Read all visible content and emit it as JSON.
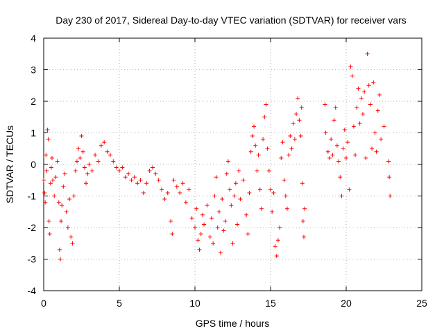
{
  "chart_data": {
    "type": "scatter",
    "title": "Day 230 of 2017, Sidereal Day-to-day VTEC variation (SDTVAR) for receiver vars",
    "xlabel": "GPS time / hours",
    "ylabel": "SDTVAR / TECUs",
    "xlim": [
      0,
      25
    ],
    "ylim": [
      -4,
      4
    ],
    "xticks": [
      "0",
      "5",
      "10",
      "15",
      "20",
      "25"
    ],
    "yticks": [
      "-4",
      "-3",
      "-2",
      "-1",
      "0",
      "1",
      "2",
      "3",
      "4"
    ],
    "grid": true,
    "marker": "+",
    "series_color": "#ff0000",
    "series": [
      {
        "name": "vars",
        "points": [
          [
            0.0,
            -0.5
          ],
          [
            0.05,
            -0.9
          ],
          [
            0.1,
            -1.2
          ],
          [
            0.15,
            0.3
          ],
          [
            0.2,
            -0.2
          ],
          [
            0.25,
            1.1
          ],
          [
            0.3,
            0.8
          ],
          [
            0.35,
            -1.8
          ],
          [
            0.4,
            -2.2
          ],
          [
            0.45,
            -0.6
          ],
          [
            0.5,
            -0.1
          ],
          [
            0.55,
            0.2
          ],
          [
            0.6,
            -0.5
          ],
          [
            0.7,
            -1.0
          ],
          [
            0.8,
            -0.4
          ],
          [
            0.9,
            0.1
          ],
          [
            1.0,
            -1.2
          ],
          [
            1.05,
            -2.7
          ],
          [
            1.1,
            -3.0
          ],
          [
            1.15,
            -1.8
          ],
          [
            1.2,
            -1.3
          ],
          [
            1.3,
            -0.7
          ],
          [
            1.4,
            -0.3
          ],
          [
            1.5,
            -1.5
          ],
          [
            1.6,
            -2.0
          ],
          [
            1.7,
            -1.1
          ],
          [
            1.8,
            -2.3
          ],
          [
            1.9,
            -2.5
          ],
          [
            2.0,
            -1.0
          ],
          [
            2.1,
            -0.2
          ],
          [
            2.2,
            0.1
          ],
          [
            2.3,
            0.5
          ],
          [
            2.4,
            0.2
          ],
          [
            2.5,
            0.9
          ],
          [
            2.6,
            0.4
          ],
          [
            2.7,
            -0.1
          ],
          [
            2.8,
            -0.6
          ],
          [
            2.9,
            -0.3
          ],
          [
            3.0,
            0.0
          ],
          [
            3.2,
            -0.2
          ],
          [
            3.4,
            0.3
          ],
          [
            3.6,
            0.1
          ],
          [
            3.8,
            0.6
          ],
          [
            4.0,
            0.7
          ],
          [
            4.2,
            0.4
          ],
          [
            4.4,
            0.3
          ],
          [
            4.6,
            0.1
          ],
          [
            4.8,
            -0.1
          ],
          [
            5.0,
            -0.2
          ],
          [
            5.2,
            -0.1
          ],
          [
            5.4,
            -0.4
          ],
          [
            5.6,
            -0.3
          ],
          [
            5.8,
            -0.5
          ],
          [
            6.0,
            -0.4
          ],
          [
            6.2,
            -0.6
          ],
          [
            6.4,
            -0.5
          ],
          [
            6.6,
            -0.9
          ],
          [
            6.8,
            -0.6
          ],
          [
            7.0,
            -0.2
          ],
          [
            7.2,
            -0.1
          ],
          [
            7.4,
            -0.3
          ],
          [
            7.6,
            -0.5
          ],
          [
            7.8,
            -0.8
          ],
          [
            8.0,
            -1.1
          ],
          [
            8.2,
            -0.9
          ],
          [
            8.4,
            -1.8
          ],
          [
            8.5,
            -2.2
          ],
          [
            8.6,
            -0.5
          ],
          [
            8.8,
            -0.7
          ],
          [
            9.0,
            -0.9
          ],
          [
            9.2,
            -0.6
          ],
          [
            9.4,
            -1.2
          ],
          [
            9.6,
            -0.8
          ],
          [
            9.8,
            -1.7
          ],
          [
            10.0,
            -2.0
          ],
          [
            10.1,
            -1.4
          ],
          [
            10.2,
            -2.4
          ],
          [
            10.3,
            -2.7
          ],
          [
            10.4,
            -2.2
          ],
          [
            10.5,
            -1.6
          ],
          [
            10.6,
            -1.9
          ],
          [
            10.8,
            -1.3
          ],
          [
            11.0,
            -2.3
          ],
          [
            11.1,
            -1.7
          ],
          [
            11.2,
            -2.5
          ],
          [
            11.3,
            -1.0
          ],
          [
            11.4,
            -0.4
          ],
          [
            11.5,
            -2.0
          ],
          [
            11.6,
            -1.5
          ],
          [
            11.7,
            -2.8
          ],
          [
            11.8,
            -1.1
          ],
          [
            11.9,
            -2.1
          ],
          [
            12.0,
            -1.8
          ],
          [
            12.1,
            -0.3
          ],
          [
            12.2,
            0.1
          ],
          [
            12.3,
            -0.8
          ],
          [
            12.4,
            -1.3
          ],
          [
            12.5,
            -2.5
          ],
          [
            12.6,
            -1.0
          ],
          [
            12.7,
            -0.6
          ],
          [
            12.8,
            -1.9
          ],
          [
            12.9,
            -0.2
          ],
          [
            13.0,
            -1.1
          ],
          [
            13.2,
            -0.5
          ],
          [
            13.4,
            -1.6
          ],
          [
            13.5,
            -2.2
          ],
          [
            13.6,
            -0.9
          ],
          [
            13.7,
            0.4
          ],
          [
            13.8,
            0.9
          ],
          [
            13.9,
            1.2
          ],
          [
            14.0,
            0.6
          ],
          [
            14.1,
            -0.2
          ],
          [
            14.2,
            0.3
          ],
          [
            14.3,
            -0.8
          ],
          [
            14.4,
            -1.4
          ],
          [
            14.5,
            0.8
          ],
          [
            14.6,
            1.5
          ],
          [
            14.7,
            1.9
          ],
          [
            14.8,
            0.5
          ],
          [
            14.9,
            -0.2
          ],
          [
            15.0,
            -0.8
          ],
          [
            15.1,
            -1.5
          ],
          [
            15.2,
            -0.9
          ],
          [
            15.3,
            -2.6
          ],
          [
            15.4,
            -2.9
          ],
          [
            15.5,
            -2.4
          ],
          [
            15.6,
            -2.0
          ],
          [
            15.7,
            0.2
          ],
          [
            15.8,
            0.7
          ],
          [
            15.9,
            -0.5
          ],
          [
            16.0,
            -1.0
          ],
          [
            16.1,
            -1.4
          ],
          [
            16.2,
            0.3
          ],
          [
            16.3,
            0.9
          ],
          [
            16.4,
            0.5
          ],
          [
            16.5,
            1.3
          ],
          [
            16.6,
            0.8
          ],
          [
            16.7,
            1.6
          ],
          [
            16.8,
            2.1
          ],
          [
            16.9,
            1.4
          ],
          [
            17.0,
            0.9
          ],
          [
            17.05,
            1.8
          ],
          [
            17.1,
            -0.6
          ],
          [
            17.15,
            -1.8
          ],
          [
            17.2,
            -2.3
          ],
          [
            17.25,
            -1.4
          ],
          [
            18.6,
            1.9
          ],
          [
            18.65,
            1.0
          ],
          [
            18.8,
            0.4
          ],
          [
            18.9,
            0.2
          ],
          [
            19.0,
            0.8
          ],
          [
            19.1,
            0.3
          ],
          [
            19.2,
            1.4
          ],
          [
            19.3,
            1.8
          ],
          [
            19.4,
            0.6
          ],
          [
            19.5,
            0.1
          ],
          [
            19.6,
            -0.4
          ],
          [
            19.7,
            -1.0
          ],
          [
            19.8,
            0.5
          ],
          [
            19.9,
            1.1
          ],
          [
            20.0,
            0.2
          ],
          [
            20.1,
            0.7
          ],
          [
            20.2,
            -0.8
          ],
          [
            20.3,
            3.1
          ],
          [
            20.4,
            2.8
          ],
          [
            20.5,
            1.2
          ],
          [
            20.6,
            0.3
          ],
          [
            20.7,
            1.8
          ],
          [
            20.8,
            2.4
          ],
          [
            20.9,
            1.3
          ],
          [
            21.0,
            2.1
          ],
          [
            21.1,
            1.6
          ],
          [
            21.2,
            2.3
          ],
          [
            21.3,
            0.2
          ],
          [
            21.4,
            3.5
          ],
          [
            21.5,
            2.5
          ],
          [
            21.6,
            1.9
          ],
          [
            21.7,
            0.5
          ],
          [
            21.8,
            2.6
          ],
          [
            21.9,
            1.0
          ],
          [
            22.0,
            0.4
          ],
          [
            22.1,
            1.7
          ],
          [
            22.2,
            2.2
          ],
          [
            22.3,
            0.8
          ],
          [
            22.5,
            1.2
          ],
          [
            22.8,
            0.1
          ],
          [
            22.85,
            -0.4
          ],
          [
            22.9,
            -1.0
          ]
        ]
      }
    ]
  }
}
